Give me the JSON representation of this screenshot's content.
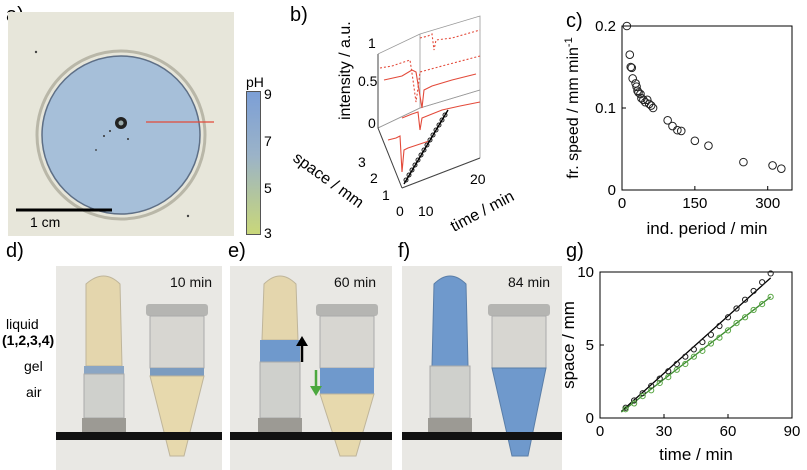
{
  "panels": {
    "a": {
      "label": "a)",
      "scalebar_label": "1 cm",
      "colorbar": {
        "title": "pH",
        "ticks": [
          "9",
          "7",
          "5",
          "3"
        ],
        "color_top": "#7c9fd6",
        "color_bottom": "#c9d77a"
      }
    },
    "b": {
      "label": "b)",
      "zlabel": "intensity / a.u.",
      "ylabel": "space / mm",
      "xlabel": "time / min",
      "zticks": [
        "1",
        "0.5",
        "0"
      ],
      "yticks": [
        "3",
        "2",
        "1",
        "0"
      ],
      "xticks": [
        "0",
        "10",
        "20"
      ]
    },
    "c": {
      "label": "c)"
    },
    "d": {
      "label": "d)",
      "time": "10 min",
      "annotations": {
        "liquid": "liquid",
        "liquid_ids": "(1,2,3,4)",
        "gel": "gel",
        "air": "air"
      }
    },
    "e": {
      "label": "e)",
      "time": "60 min"
    },
    "f": {
      "label": "f)",
      "time": "84 min"
    },
    "g": {
      "label": "g)"
    }
  },
  "chart_data": [
    {
      "type": "scatter",
      "panel": "c",
      "xlabel": "ind. period / min",
      "ylabel": "fr. speed / mm min",
      "ylabel_superscript": "-1",
      "xlim": [
        0,
        350
      ],
      "ylim": [
        0,
        0.2
      ],
      "xticks": [
        0,
        150,
        300
      ],
      "yticks": [
        0,
        0.1,
        0.2
      ],
      "points": [
        [
          10,
          0.2
        ],
        [
          16,
          0.165
        ],
        [
          18,
          0.15
        ],
        [
          20,
          0.149
        ],
        [
          22,
          0.136
        ],
        [
          28,
          0.13
        ],
        [
          30,
          0.126
        ],
        [
          32,
          0.121
        ],
        [
          34,
          0.119
        ],
        [
          38,
          0.117
        ],
        [
          40,
          0.112
        ],
        [
          44,
          0.11
        ],
        [
          48,
          0.107
        ],
        [
          52,
          0.11
        ],
        [
          56,
          0.105
        ],
        [
          60,
          0.103
        ],
        [
          64,
          0.1
        ],
        [
          94,
          0.085
        ],
        [
          104,
          0.078
        ],
        [
          114,
          0.073
        ],
        [
          122,
          0.072
        ],
        [
          150,
          0.06
        ],
        [
          178,
          0.054
        ],
        [
          250,
          0.034
        ],
        [
          310,
          0.03
        ],
        [
          328,
          0.026
        ]
      ]
    },
    {
      "type": "scatter",
      "panel": "g",
      "xlabel": "time / min",
      "ylabel": "space / mm",
      "xlim": [
        0,
        90
      ],
      "ylim": [
        0,
        10
      ],
      "xticks": [
        0,
        30,
        60,
        90
      ],
      "yticks": [
        0,
        5,
        10
      ],
      "series": [
        {
          "color": "#222222",
          "x": [
            12,
            16,
            20,
            24,
            28,
            32,
            36,
            40,
            44,
            48,
            52,
            56,
            60,
            64,
            68,
            72,
            76,
            80
          ],
          "y": [
            0.7,
            1.2,
            1.7,
            2.2,
            2.7,
            3.2,
            3.7,
            4.2,
            4.7,
            5.2,
            5.7,
            6.3,
            6.9,
            7.5,
            8.1,
            8.7,
            9.3,
            9.9
          ],
          "fit": [
            [
              10,
              0.45
            ],
            [
              80,
              9.6
            ]
          ]
        },
        {
          "color": "#5aa845",
          "x": [
            12,
            16,
            20,
            24,
            28,
            32,
            36,
            40,
            44,
            48,
            52,
            56,
            60,
            64,
            68,
            72,
            76,
            80
          ],
          "y": [
            0.6,
            1.0,
            1.5,
            1.9,
            2.4,
            2.8,
            3.3,
            3.7,
            4.2,
            4.6,
            5.1,
            5.5,
            6.0,
            6.5,
            6.9,
            7.4,
            7.8,
            8.3
          ],
          "fit": [
            [
              10,
              0.4
            ],
            [
              80,
              8.3
            ]
          ]
        }
      ]
    }
  ]
}
